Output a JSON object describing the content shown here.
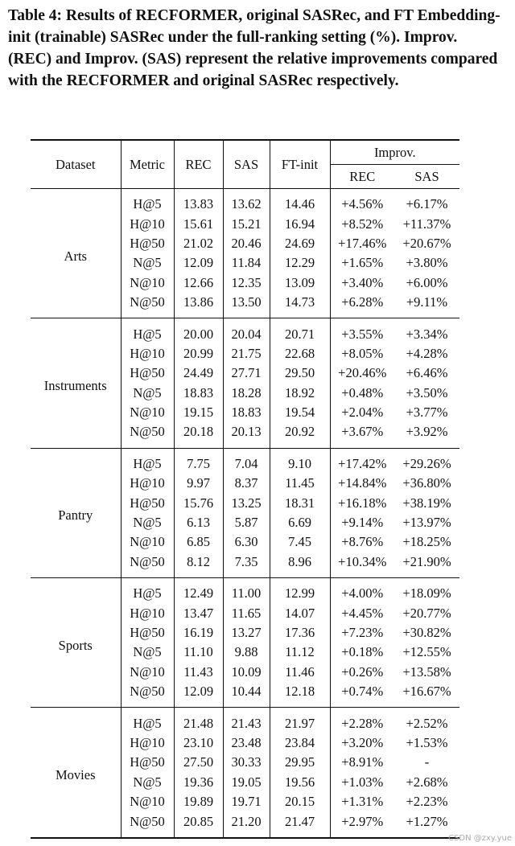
{
  "caption": "Table 4: Results of RECFORMER, original SASRec, and FT Embedding-init (trainable) SASRec under the full-ranking setting (%). Improv. (REC) and Improv. (SAS) represent the relative improvements compared with the RECFORMER and original SASRec respectively.",
  "header": {
    "dataset": "Dataset",
    "metric": "Metric",
    "rec": "REC",
    "sas": "SAS",
    "ft": "FT-init",
    "improv": "Improv.",
    "improv_rec": "REC",
    "improv_sas": "SAS"
  },
  "groups": [
    {
      "dataset": "Arts",
      "rows": [
        [
          "H@5",
          "13.83",
          "13.62",
          "14.46",
          "+4.56%",
          "+6.17%"
        ],
        [
          "H@10",
          "15.61",
          "15.21",
          "16.94",
          "+8.52%",
          "+11.37%"
        ],
        [
          "H@50",
          "21.02",
          "20.46",
          "24.69",
          "+17.46%",
          "+20.67%"
        ],
        [
          "N@5",
          "12.09",
          "11.84",
          "12.29",
          "+1.65%",
          "+3.80%"
        ],
        [
          "N@10",
          "12.66",
          "12.35",
          "13.09",
          "+3.40%",
          "+6.00%"
        ],
        [
          "N@50",
          "13.86",
          "13.50",
          "14.73",
          "+6.28%",
          "+9.11%"
        ]
      ]
    },
    {
      "dataset": "Instruments",
      "rows": [
        [
          "H@5",
          "20.00",
          "20.04",
          "20.71",
          "+3.55%",
          "+3.34%"
        ],
        [
          "H@10",
          "20.99",
          "21.75",
          "22.68",
          "+8.05%",
          "+4.28%"
        ],
        [
          "H@50",
          "24.49",
          "27.71",
          "29.50",
          "+20.46%",
          "+6.46%"
        ],
        [
          "N@5",
          "18.83",
          "18.28",
          "18.92",
          "+0.48%",
          "+3.50%"
        ],
        [
          "N@10",
          "19.15",
          "18.83",
          "19.54",
          "+2.04%",
          "+3.77%"
        ],
        [
          "N@50",
          "20.18",
          "20.13",
          "20.92",
          "+3.67%",
          "+3.92%"
        ]
      ]
    },
    {
      "dataset": "Pantry",
      "rows": [
        [
          "H@5",
          "7.75",
          "7.04",
          "9.10",
          "+17.42%",
          "+29.26%"
        ],
        [
          "H@10",
          "9.97",
          "8.37",
          "11.45",
          "+14.84%",
          "+36.80%"
        ],
        [
          "H@50",
          "15.76",
          "13.25",
          "18.31",
          "+16.18%",
          "+38.19%"
        ],
        [
          "N@5",
          "6.13",
          "5.87",
          "6.69",
          "+9.14%",
          "+13.97%"
        ],
        [
          "N@10",
          "6.85",
          "6.30",
          "7.45",
          "+8.76%",
          "+18.25%"
        ],
        [
          "N@50",
          "8.12",
          "7.35",
          "8.96",
          "+10.34%",
          "+21.90%"
        ]
      ]
    },
    {
      "dataset": "Sports",
      "rows": [
        [
          "H@5",
          "12.49",
          "11.00",
          "12.99",
          "+4.00%",
          "+18.09%"
        ],
        [
          "H@10",
          "13.47",
          "11.65",
          "14.07",
          "+4.45%",
          "+20.77%"
        ],
        [
          "H@50",
          "16.19",
          "13.27",
          "17.36",
          "+7.23%",
          "+30.82%"
        ],
        [
          "N@5",
          "11.10",
          "9.88",
          "11.12",
          "+0.18%",
          "+12.55%"
        ],
        [
          "N@10",
          "11.43",
          "10.09",
          "11.46",
          "+0.26%",
          "+13.58%"
        ],
        [
          "N@50",
          "12.09",
          "10.44",
          "12.18",
          "+0.74%",
          "+16.67%"
        ]
      ]
    },
    {
      "dataset": "Movies",
      "rows": [
        [
          "H@5",
          "21.48",
          "21.43",
          "21.97",
          "+2.28%",
          "+2.52%"
        ],
        [
          "H@10",
          "23.10",
          "23.48",
          "23.84",
          "+3.20%",
          "+1.53%"
        ],
        [
          "H@50",
          "27.50",
          "30.33",
          "29.95",
          "+8.91%",
          "-"
        ],
        [
          "N@5",
          "19.36",
          "19.05",
          "19.56",
          "+1.03%",
          "+2.68%"
        ],
        [
          "N@10",
          "19.89",
          "19.71",
          "20.15",
          "+1.31%",
          "+2.23%"
        ],
        [
          "N@50",
          "20.85",
          "21.20",
          "21.47",
          "+2.97%",
          "+1.27%"
        ]
      ]
    }
  ],
  "watermark": "CSDN @zxy.yue"
}
